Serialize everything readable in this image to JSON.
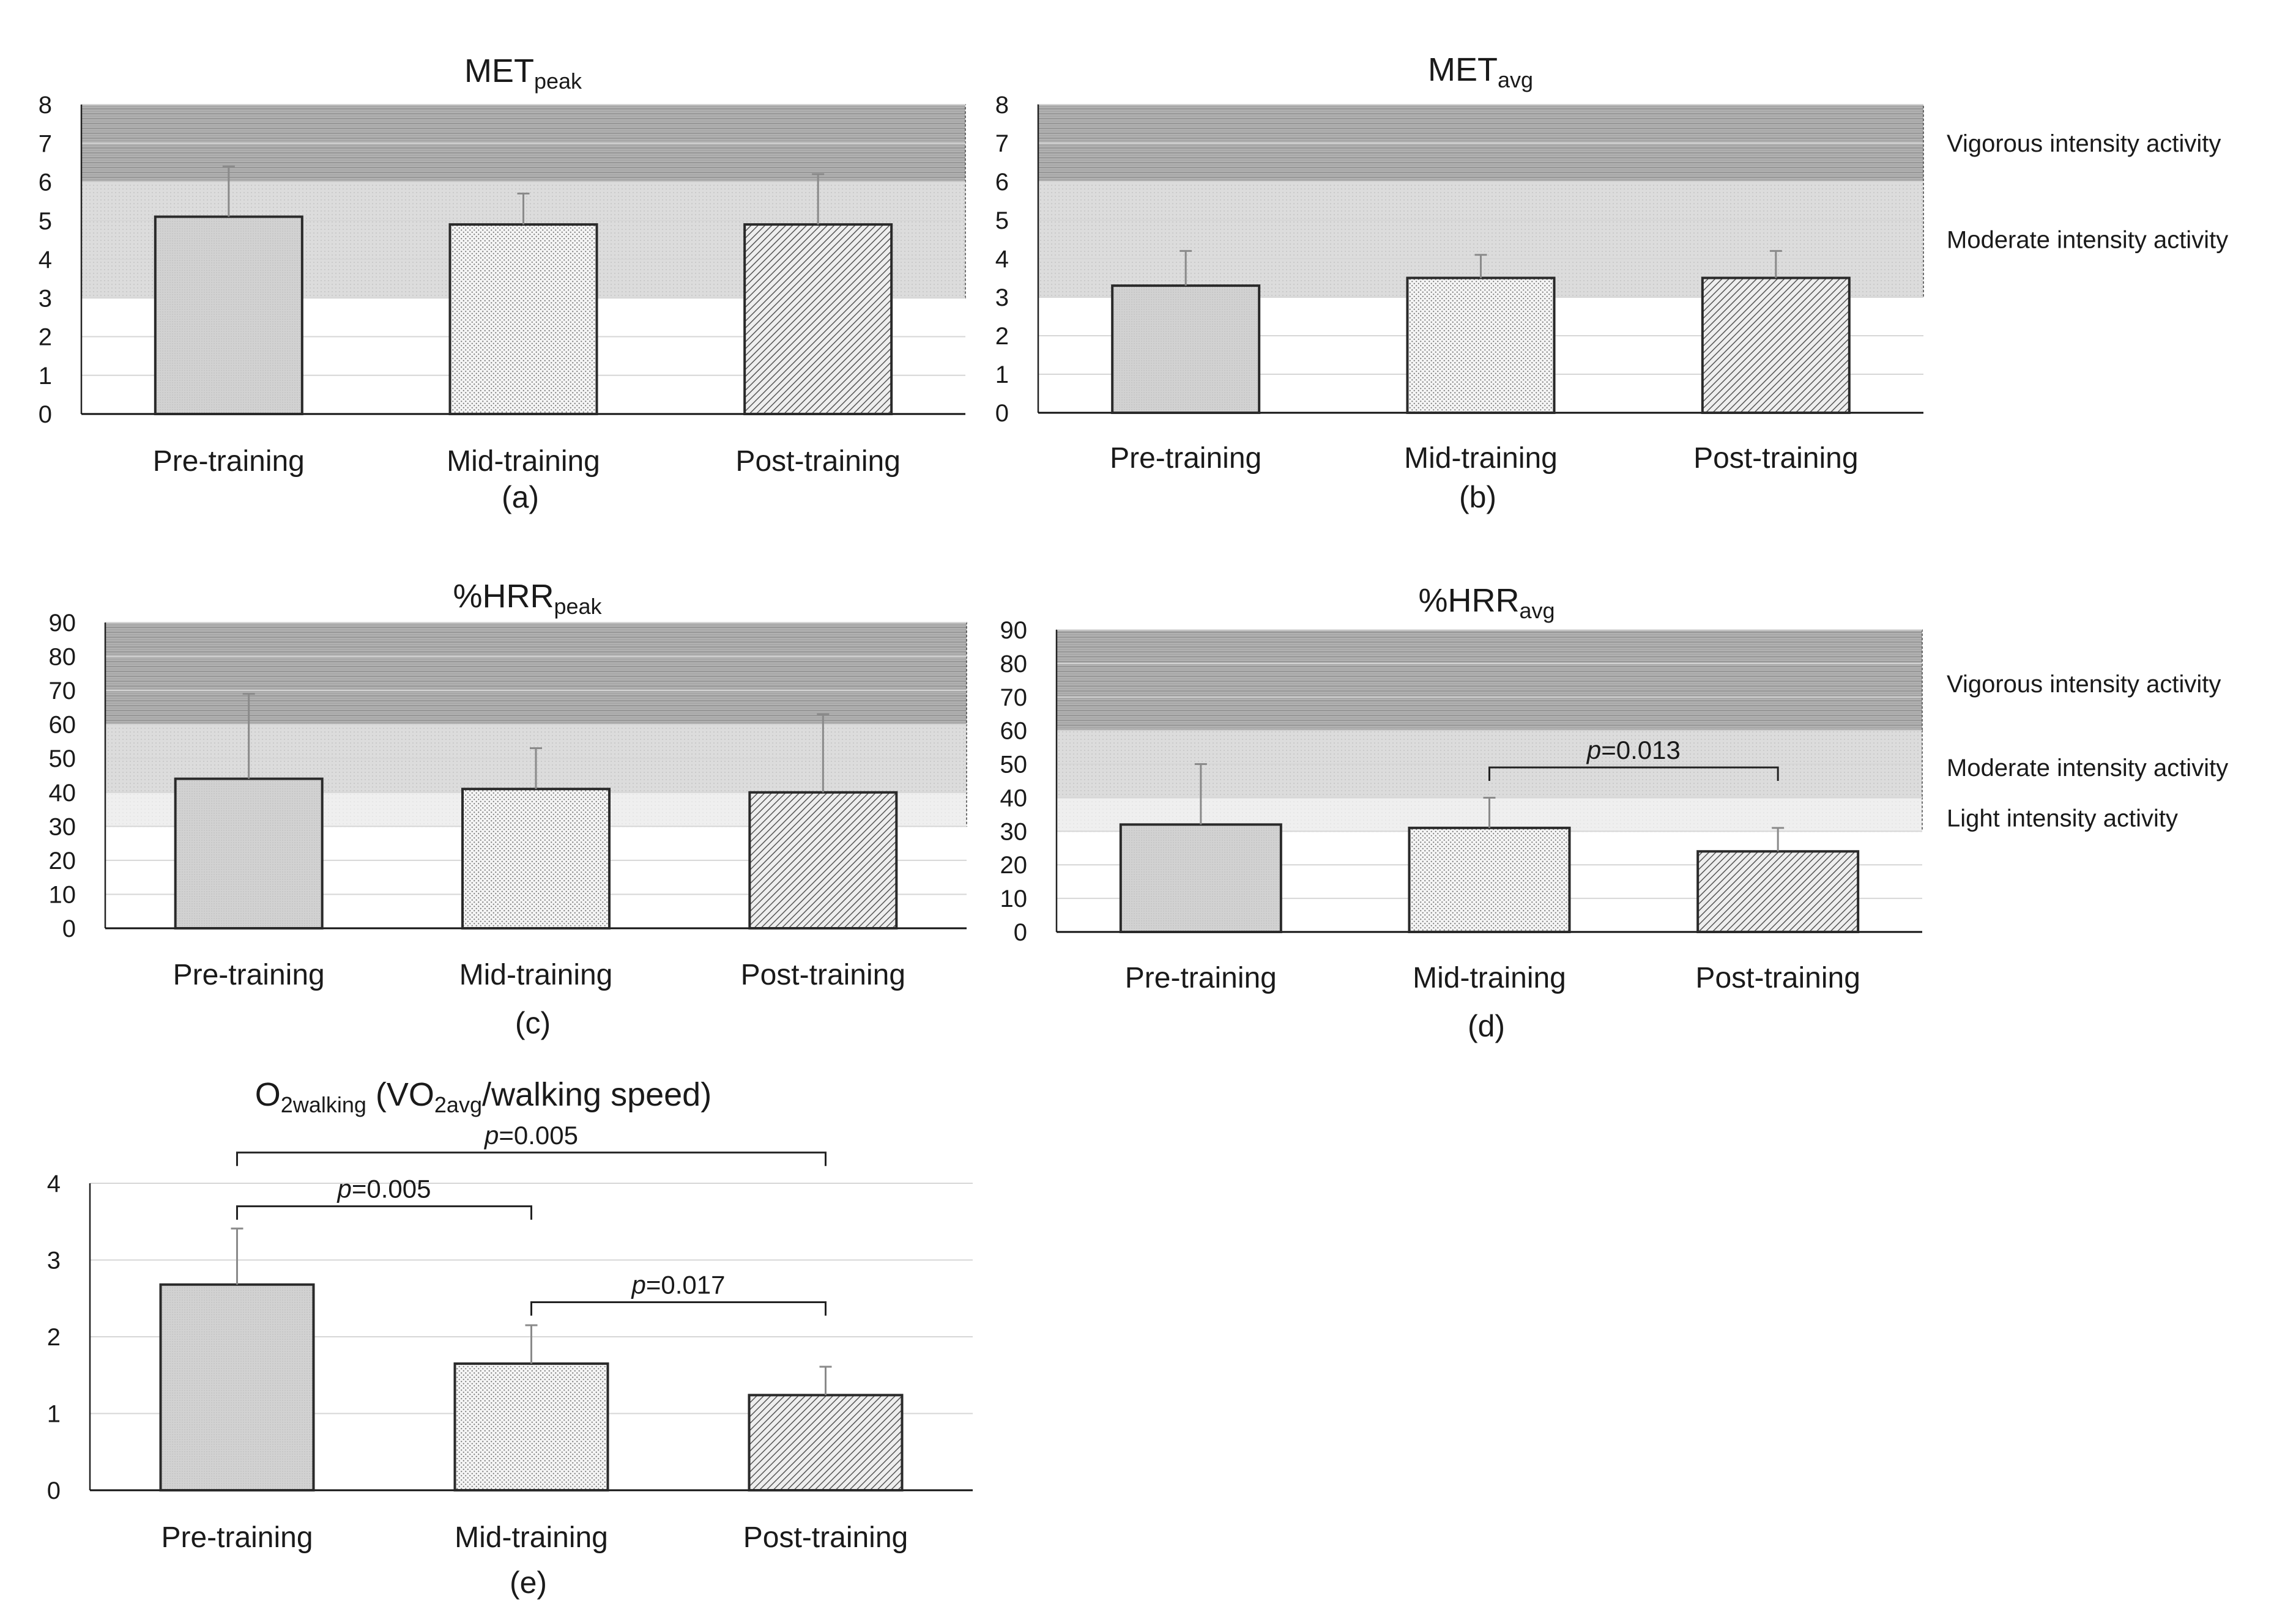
{
  "colors": {
    "zone_vigorous": "#a9a9a9",
    "zone_moderate": "#d9d9d9",
    "zone_light": "#efefef",
    "bar_border": "#2a2a2a",
    "error_bar": "#8a8a8a",
    "gridline": "#d6d6d6",
    "text": "#1a1a1a"
  },
  "chart_data": [
    {
      "id": "a",
      "type": "bar",
      "title": "MET",
      "title_sub": "peak",
      "caption": "(a)",
      "categories": [
        "Pre-training",
        "Mid-training",
        "Post-training"
      ],
      "values": [
        5.1,
        4.9,
        4.9
      ],
      "errors": [
        1.3,
        0.8,
        1.3
      ],
      "ylim": [
        0,
        8
      ],
      "yticks": [
        "0",
        "1",
        "2",
        "3",
        "4",
        "5",
        "6",
        "7",
        "8"
      ],
      "zones": [
        {
          "name": "vigorous",
          "from": 6,
          "to": 8
        },
        {
          "name": "moderate",
          "from": 3,
          "to": 6
        }
      ],
      "zone_labels": [],
      "brackets": []
    },
    {
      "id": "b",
      "type": "bar",
      "title": "MET",
      "title_sub": "avg",
      "caption": "(b)",
      "categories": [
        "Pre-training",
        "Mid-training",
        "Post-training"
      ],
      "values": [
        3.3,
        3.5,
        3.5
      ],
      "errors": [
        0.9,
        0.6,
        0.7
      ],
      "ylim": [
        0,
        8
      ],
      "yticks": [
        "0",
        "1",
        "2",
        "3",
        "4",
        "5",
        "6",
        "7",
        "8"
      ],
      "zones": [
        {
          "name": "vigorous",
          "from": 6,
          "to": 8
        },
        {
          "name": "moderate",
          "from": 3,
          "to": 6
        }
      ],
      "zone_labels": [
        {
          "text": "Vigorous intensity activity",
          "y": 7
        },
        {
          "text": "Moderate intensity activity",
          "y": 4.5
        }
      ],
      "brackets": []
    },
    {
      "id": "c",
      "type": "bar",
      "title": "%HRR",
      "title_sub": "peak",
      "caption": "(c)",
      "categories": [
        "Pre-training",
        "Mid-training",
        "Post-training"
      ],
      "values": [
        44,
        41,
        40
      ],
      "errors": [
        25,
        12,
        23
      ],
      "ylim": [
        0,
        90
      ],
      "yticks": [
        "0",
        "10",
        "20",
        "30",
        "40",
        "50",
        "60",
        "70",
        "80",
        "90"
      ],
      "zones": [
        {
          "name": "vigorous",
          "from": 60,
          "to": 90
        },
        {
          "name": "moderate",
          "from": 40,
          "to": 60
        },
        {
          "name": "light",
          "from": 30,
          "to": 40
        }
      ],
      "zone_labels": [],
      "brackets": []
    },
    {
      "id": "d",
      "type": "bar",
      "title": "%HRR",
      "title_sub": "avg",
      "caption": "(d)",
      "categories": [
        "Pre-training",
        "Mid-training",
        "Post-training"
      ],
      "values": [
        32,
        31,
        24
      ],
      "errors": [
        18,
        9,
        7
      ],
      "ylim": [
        0,
        90
      ],
      "yticks": [
        "0",
        "10",
        "20",
        "30",
        "40",
        "50",
        "60",
        "70",
        "80",
        "90"
      ],
      "zones": [
        {
          "name": "vigorous",
          "from": 60,
          "to": 90
        },
        {
          "name": "moderate",
          "from": 40,
          "to": 60
        },
        {
          "name": "light",
          "from": 30,
          "to": 40
        }
      ],
      "zone_labels": [
        {
          "text": "Vigorous intensity activity",
          "y": 74
        },
        {
          "text": "Moderate intensity activity",
          "y": 49
        },
        {
          "text": "Light intensity activity",
          "y": 34
        }
      ],
      "brackets": [
        {
          "from": 1,
          "to": 2,
          "level": 49,
          "p_italic": "p",
          "p_rest": "=0.013"
        }
      ]
    },
    {
      "id": "e",
      "type": "bar",
      "title": "O",
      "title_parts": [
        {
          "t": "O",
          "sub": false
        },
        {
          "t": "2walking",
          "sub": true
        },
        {
          "t": " (VO",
          "sub": false
        },
        {
          "t": "2avg",
          "sub": true
        },
        {
          "t": "/walking speed)",
          "sub": false
        }
      ],
      "caption": "(e)",
      "categories": [
        "Pre-training",
        "Mid-training",
        "Post-training"
      ],
      "values": [
        2.68,
        1.65,
        1.24
      ],
      "errors": [
        0.73,
        0.5,
        0.37
      ],
      "ylim": [
        0,
        4
      ],
      "yticks": [
        "0",
        "1",
        "2",
        "3",
        "4"
      ],
      "zones": [],
      "zone_labels": [],
      "brackets": [
        {
          "from": 0,
          "to": 2,
          "level": 4.4,
          "p_italic": "p",
          "p_rest": "=0.005"
        },
        {
          "from": 0,
          "to": 1,
          "level": 3.7,
          "p_italic": "p",
          "p_rest": "=0.005"
        },
        {
          "from": 1,
          "to": 2,
          "level": 2.45,
          "p_italic": "p",
          "p_rest": "=0.017"
        }
      ]
    }
  ]
}
